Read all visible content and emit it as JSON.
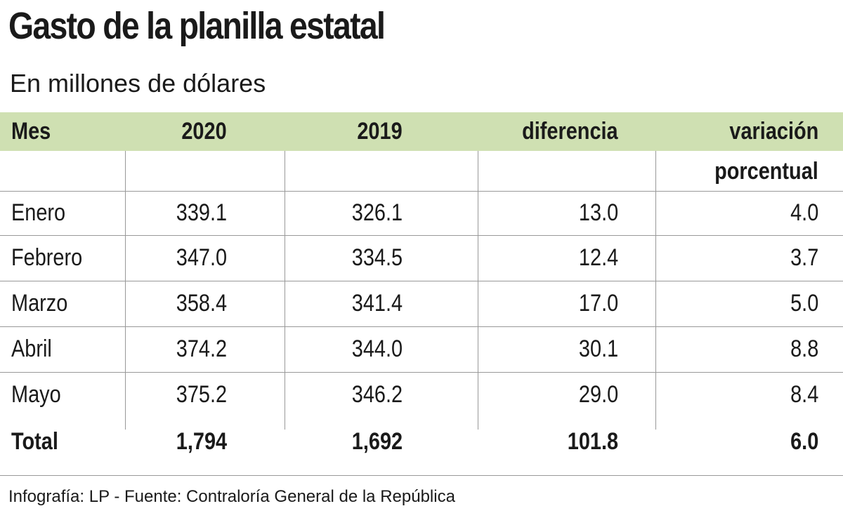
{
  "header": {
    "title": "Gasto de la planilla estatal",
    "subtitle": "En millones de dólares"
  },
  "table": {
    "columns": [
      "Mes",
      "2020",
      "2019",
      "diferencia",
      [
        "variación",
        "porcentual"
      ]
    ],
    "rows": [
      [
        "Enero",
        "339.1",
        "326.1",
        "13.0",
        "4.0"
      ],
      [
        "Febrero",
        "347.0",
        "334.5",
        "12.4",
        "3.7"
      ],
      [
        "Marzo",
        "358.4",
        "341.4",
        "17.0",
        "5.0"
      ],
      [
        "Abril",
        "374.2",
        "344.0",
        "30.1",
        "8.8"
      ],
      [
        "Mayo",
        "375.2",
        "346.2",
        "29.0",
        "8.4"
      ]
    ],
    "total": [
      "Total",
      "1,794",
      "1,692",
      "101.8",
      "6.0"
    ]
  },
  "footer": {
    "source": "Infografía: LP - Fuente: Contraloría General de la República"
  }
}
